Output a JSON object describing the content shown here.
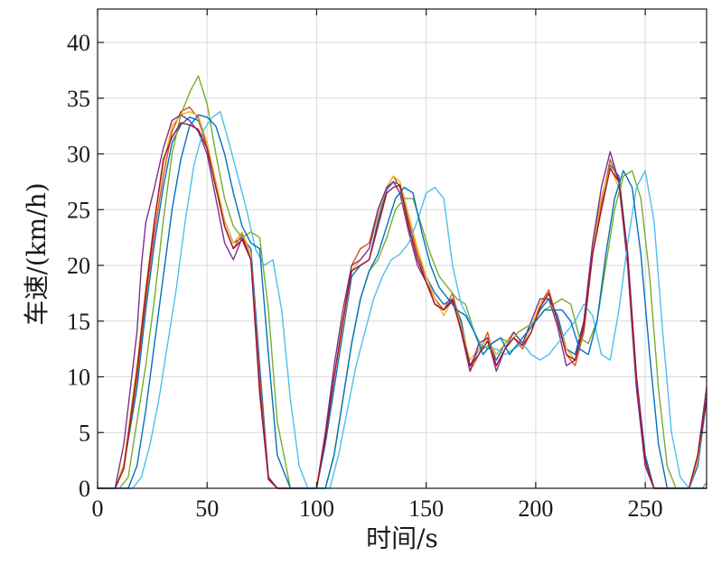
{
  "chart_data": {
    "type": "line",
    "title": "",
    "xlabel": "时间/s",
    "ylabel": "车速/(km/h)",
    "xlim": [
      0,
      278
    ],
    "ylim": [
      0,
      43
    ],
    "xticks": [
      0,
      50,
      100,
      150,
      200,
      250
    ],
    "yticks": [
      0,
      5,
      10,
      15,
      20,
      25,
      30,
      35,
      40
    ],
    "grid": true,
    "legend": "none",
    "series": [
      {
        "color": "#0072BD",
        "x": [
          0,
          8,
          12,
          18,
          22,
          26,
          30,
          34,
          38,
          42,
          46,
          50,
          54,
          58,
          62,
          66,
          70,
          74,
          78,
          82,
          88,
          95,
          100,
          104,
          108,
          112,
          116,
          120,
          124,
          128,
          132,
          135,
          138,
          142,
          146,
          150,
          154,
          158,
          162,
          166,
          170,
          174,
          178,
          182,
          186,
          190,
          194,
          198,
          202,
          206,
          210,
          214,
          218,
          222,
          226,
          230,
          234,
          238,
          242,
          246,
          250,
          254,
          258,
          262,
          266,
          270,
          274,
          278
        ],
        "y": [
          0,
          0,
          2,
          9,
          16,
          22,
          27,
          31,
          32.6,
          33.3,
          33,
          31,
          27,
          24,
          22,
          22.5,
          21.5,
          11,
          1,
          0,
          0,
          0,
          0,
          4,
          9,
          14,
          19,
          20,
          20.5,
          24,
          26.8,
          27.5,
          27.2,
          24,
          21,
          19,
          17.5,
          16.5,
          17,
          15,
          11,
          12.5,
          13.5,
          11.5,
          13,
          14,
          13,
          14.5,
          16,
          17,
          15.5,
          12.5,
          12,
          15,
          22,
          26,
          29,
          28,
          21,
          10,
          3,
          0,
          0,
          0,
          0,
          0,
          2,
          8
        ]
      },
      {
        "color": "#D95319",
        "x": [
          0,
          8,
          12,
          18,
          22,
          26,
          30,
          34,
          38,
          42,
          46,
          50,
          54,
          58,
          62,
          66,
          70,
          74,
          78,
          82,
          88,
          95,
          100,
          104,
          108,
          112,
          116,
          120,
          124,
          128,
          132,
          135,
          138,
          142,
          146,
          150,
          154,
          158,
          162,
          166,
          170,
          174,
          178,
          182,
          186,
          190,
          194,
          198,
          202,
          206,
          210,
          214,
          218,
          222,
          226,
          230,
          234,
          238,
          242,
          246,
          250,
          254,
          258,
          262,
          266,
          270,
          274,
          278
        ],
        "y": [
          0,
          0,
          1.8,
          10,
          17,
          23,
          28,
          32,
          33.8,
          34.2,
          33.2,
          30.5,
          27,
          23.5,
          21.5,
          22.8,
          20.5,
          10,
          1,
          0,
          0,
          0,
          0,
          5,
          10,
          15,
          20,
          21.5,
          22,
          25,
          27,
          28,
          27,
          24,
          21,
          18.5,
          17,
          16,
          17.5,
          14.5,
          10.5,
          12,
          14,
          11,
          12.5,
          13.5,
          12.5,
          14,
          16.5,
          17.8,
          15,
          12,
          11,
          14,
          21,
          25.5,
          29.5,
          27.5,
          20,
          9,
          2,
          0,
          0,
          0,
          0,
          0,
          3,
          9
        ]
      },
      {
        "color": "#EDB120",
        "x": [
          0,
          8,
          12,
          18,
          22,
          26,
          30,
          34,
          38,
          42,
          46,
          50,
          54,
          58,
          62,
          66,
          70,
          74,
          78,
          82,
          88,
          95,
          100,
          104,
          108,
          112,
          116,
          120,
          124,
          128,
          132,
          135,
          138,
          142,
          146,
          150,
          154,
          158,
          162,
          166,
          170,
          174,
          178,
          182,
          186,
          190,
          194,
          198,
          202,
          206,
          210,
          214,
          218,
          222,
          226,
          230,
          234,
          238,
          242,
          246,
          250,
          254,
          258,
          262,
          266,
          270,
          274,
          278
        ],
        "y": [
          0,
          0,
          2.2,
          11,
          18,
          24,
          29,
          32.5,
          33.5,
          33.8,
          33.4,
          31,
          27.5,
          24,
          22,
          23,
          21,
          9,
          0.8,
          0,
          0,
          0,
          0,
          4.5,
          10,
          14.5,
          19.5,
          20.5,
          21.5,
          24.5,
          27,
          28,
          27.5,
          24.5,
          21.5,
          19,
          17,
          15.5,
          17,
          14.5,
          11.5,
          12.5,
          13.5,
          12,
          13,
          14,
          13,
          14.5,
          16.5,
          17.5,
          15,
          12.5,
          11.5,
          14.5,
          21.5,
          26,
          28.8,
          27,
          20.5,
          9.5,
          2.5,
          0,
          0,
          0,
          0,
          0,
          2.5,
          8.5
        ]
      },
      {
        "color": "#7E2F8E",
        "x": [
          0,
          8,
          12,
          18,
          20,
          22,
          26,
          30,
          34,
          38,
          42,
          46,
          50,
          54,
          58,
          62,
          66,
          70,
          74,
          78,
          82,
          88,
          95,
          100,
          104,
          108,
          112,
          116,
          120,
          124,
          128,
          132,
          135,
          138,
          142,
          146,
          150,
          154,
          158,
          162,
          166,
          170,
          174,
          178,
          182,
          186,
          190,
          194,
          198,
          202,
          206,
          210,
          214,
          218,
          222,
          226,
          230,
          234,
          238,
          242,
          246,
          250,
          254,
          258,
          262,
          266,
          270,
          274,
          278
        ],
        "y": [
          0,
          0,
          4,
          14,
          20,
          23.8,
          27,
          30.5,
          33,
          33.5,
          33,
          32,
          30,
          26,
          22,
          20.5,
          22.5,
          20.5,
          9,
          1,
          0,
          0,
          0,
          0,
          5,
          11,
          16,
          20,
          20.5,
          21.5,
          25,
          27,
          27.5,
          26.5,
          23,
          20,
          18.5,
          16.5,
          16,
          17,
          14,
          10.5,
          13,
          13.5,
          10.5,
          12.5,
          14,
          13,
          15,
          17,
          17,
          14.5,
          11,
          11.5,
          15,
          22,
          27,
          30.2,
          27.5,
          20,
          9,
          2,
          0,
          0,
          0,
          0,
          0,
          3,
          9
        ]
      },
      {
        "color": "#77AC30",
        "x": [
          0,
          10,
          14,
          18,
          22,
          26,
          30,
          34,
          38,
          42,
          46,
          50,
          54,
          58,
          62,
          66,
          70,
          74,
          78,
          82,
          88,
          95,
          100,
          104,
          108,
          112,
          116,
          120,
          124,
          128,
          132,
          136,
          140,
          144,
          148,
          152,
          156,
          160,
          164,
          168,
          172,
          176,
          180,
          184,
          188,
          192,
          196,
          200,
          204,
          208,
          212,
          216,
          220,
          224,
          228,
          232,
          236,
          240,
          244,
          248,
          252,
          256,
          260,
          264,
          268,
          272,
          276,
          278
        ],
        "y": [
          0,
          0,
          1,
          6,
          11,
          17,
          24,
          30,
          33.5,
          35.5,
          37,
          34.5,
          30,
          26,
          23.5,
          22.5,
          23,
          22.5,
          16,
          6,
          0,
          0,
          0,
          0,
          3,
          8,
          13,
          17,
          19.5,
          20.5,
          22.5,
          25,
          26,
          26,
          23.5,
          21,
          19,
          18,
          17,
          16.5,
          14,
          12.5,
          13,
          13.5,
          13,
          14,
          14.5,
          15,
          16,
          16.5,
          17,
          16.5,
          13.5,
          13,
          15,
          20,
          25,
          28,
          28.5,
          26,
          19,
          9,
          2,
          0,
          0,
          0,
          0,
          0.5
        ]
      },
      {
        "color": "#4DBEEE",
        "x": [
          0,
          16,
          20,
          24,
          28,
          32,
          36,
          40,
          44,
          48,
          52,
          56,
          60,
          64,
          68,
          72,
          76,
          80,
          84,
          88,
          92,
          96,
          100,
          106,
          110,
          114,
          118,
          122,
          126,
          130,
          134,
          138,
          142,
          146,
          150,
          154,
          158,
          162,
          166,
          170,
          174,
          178,
          182,
          186,
          190,
          194,
          198,
          202,
          206,
          210,
          214,
          218,
          222,
          226,
          230,
          234,
          238,
          242,
          246,
          250,
          254,
          258,
          262,
          266,
          270,
          274,
          278
        ],
        "y": [
          0,
          0,
          1,
          4,
          8,
          13,
          18,
          24,
          29,
          32,
          33.2,
          33.8,
          31,
          28,
          25,
          21.5,
          20,
          20.5,
          16,
          8,
          2,
          0,
          0,
          0,
          3,
          7,
          11,
          14,
          17,
          19,
          20.5,
          21,
          22,
          24,
          26.5,
          27,
          26,
          20,
          16.5,
          15,
          13,
          12.5,
          12.5,
          12,
          12.5,
          13,
          12,
          11.5,
          12,
          13,
          14,
          15,
          16.5,
          15.5,
          12,
          11.5,
          16,
          22,
          27,
          28.5,
          24,
          14,
          5,
          1,
          0,
          0,
          0
        ]
      },
      {
        "color": "#A2142F",
        "x": [
          0,
          8,
          12,
          18,
          22,
          26,
          30,
          34,
          38,
          42,
          46,
          50,
          54,
          58,
          62,
          66,
          70,
          74,
          78,
          82,
          88,
          95,
          100,
          104,
          108,
          112,
          116,
          120,
          124,
          128,
          132,
          135,
          138,
          142,
          146,
          150,
          154,
          158,
          162,
          166,
          170,
          174,
          178,
          182,
          186,
          190,
          194,
          198,
          202,
          206,
          210,
          214,
          218,
          222,
          226,
          230,
          234,
          238,
          242,
          246,
          250,
          254,
          258,
          262,
          266,
          270,
          274,
          278
        ],
        "y": [
          0,
          0,
          1.8,
          10.5,
          17.5,
          24,
          29.5,
          31.5,
          32.8,
          32.6,
          32.2,
          30.5,
          27,
          23.5,
          21.5,
          22.3,
          20.5,
          8.5,
          0.8,
          0,
          0,
          0,
          0,
          4.5,
          10,
          15,
          19.5,
          20,
          20.5,
          23.5,
          26.5,
          27,
          27.2,
          23.5,
          20.5,
          18.5,
          16.5,
          16,
          16.8,
          14.2,
          11,
          12,
          13.2,
          11,
          12.5,
          13.5,
          12.8,
          14,
          16.2,
          17.5,
          15,
          12,
          11.5,
          14.5,
          21,
          25,
          28.7,
          27.5,
          21,
          10,
          2.5,
          0,
          0,
          0,
          0,
          0,
          3,
          8
        ]
      },
      {
        "color": "#0072BD",
        "x": [
          0,
          14,
          18,
          22,
          26,
          30,
          34,
          38,
          42,
          46,
          50,
          54,
          58,
          62,
          66,
          70,
          74,
          78,
          82,
          88,
          95,
          100,
          104,
          108,
          112,
          116,
          120,
          124,
          128,
          132,
          136,
          140,
          144,
          148,
          152,
          156,
          160,
          164,
          168,
          172,
          176,
          180,
          184,
          188,
          192,
          196,
          200,
          204,
          208,
          212,
          216,
          220,
          224,
          228,
          232,
          236,
          240,
          244,
          248,
          252,
          256,
          260,
          264,
          268,
          272,
          276,
          278
        ],
        "y": [
          0,
          0,
          2,
          7,
          13,
          19,
          25,
          29.5,
          32.5,
          33.5,
          33.3,
          32.5,
          30,
          26.5,
          23.5,
          22,
          21.5,
          12,
          3,
          0,
          0,
          0,
          0,
          3,
          8,
          13,
          17,
          19.5,
          21,
          23.5,
          26,
          27,
          26.5,
          23,
          20,
          18,
          17,
          16,
          15.5,
          14,
          12,
          13,
          13.5,
          12,
          13,
          14,
          15,
          16,
          16,
          16,
          15,
          12.5,
          12,
          15,
          21,
          26,
          28.5,
          27,
          21,
          12,
          4,
          0,
          0,
          0,
          0,
          0,
          0
        ]
      }
    ]
  }
}
